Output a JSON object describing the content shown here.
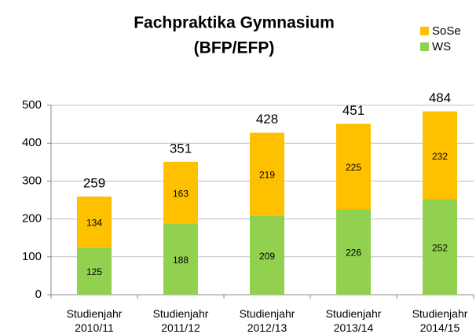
{
  "chart_data": {
    "type": "stacked_bar",
    "title": "Fachpraktika Gymnasium",
    "subtitle": "(BFP/EFP)",
    "categories": [
      "Studienjahr 2010/11",
      "Studienjahr 2011/12",
      "Studienjahr 2012/13",
      "Studienjahr 2013/14",
      "Studienjahr 2014/15"
    ],
    "series": [
      {
        "name": "WS",
        "color": "#92d050",
        "values": [
          125,
          188,
          209,
          226,
          252
        ]
      },
      {
        "name": "SoSe",
        "color": "#ffc000",
        "values": [
          134,
          163,
          219,
          225,
          232
        ]
      }
    ],
    "totals": [
      259,
      351,
      428,
      451,
      484
    ],
    "ylim": [
      0,
      500
    ],
    "yticks": [
      0,
      100,
      200,
      300,
      400,
      500
    ],
    "grid": true,
    "legend": "top-right"
  }
}
